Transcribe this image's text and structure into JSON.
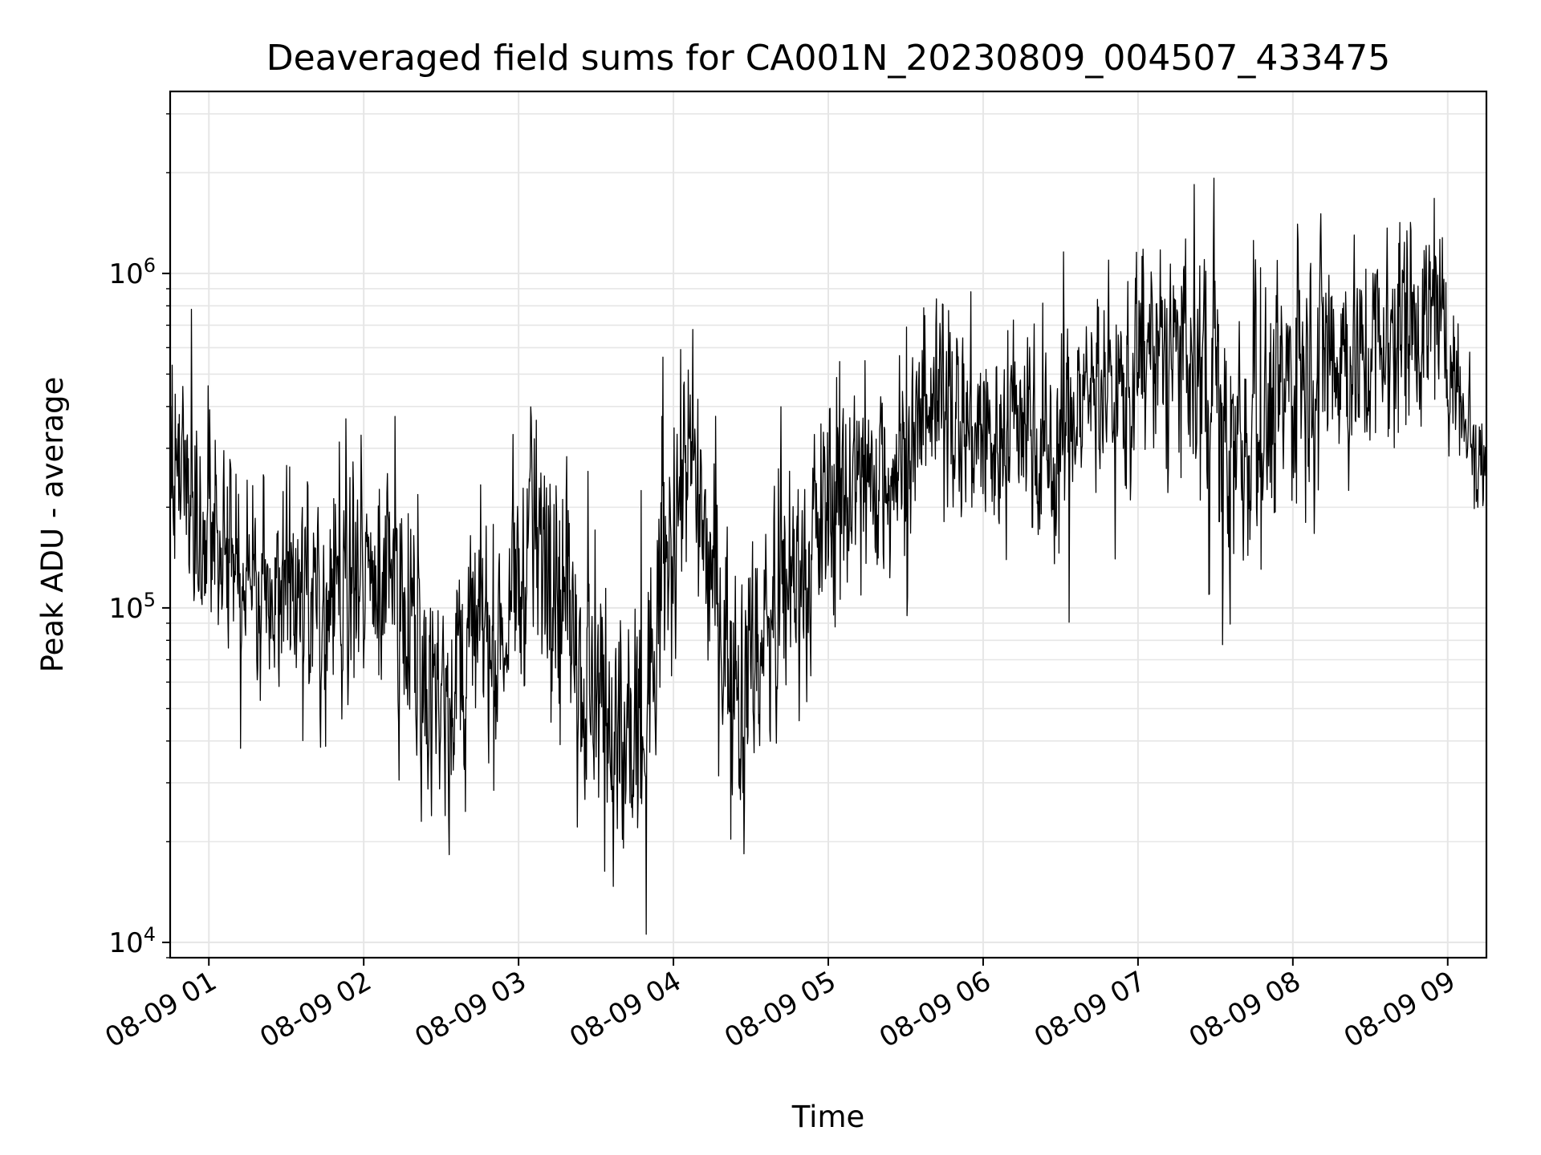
{
  "chart_data": {
    "type": "line",
    "title": "Deaveraged field sums for CA001N_20230809_004507_433475",
    "xlabel": "Time",
    "ylabel": "Peak ADU - average",
    "yscale": "log",
    "ylim": [
      9000,
      3500000
    ],
    "xlim": [
      "2023-08-09 00:45",
      "2023-08-09 09:15"
    ],
    "grid": true,
    "line_color": "#000000",
    "grid_color": "#e6e6e6",
    "x_ticks": [
      "2023-08-09 01:00",
      "2023-08-09 02:00",
      "2023-08-09 03:00",
      "2023-08-09 04:00",
      "2023-08-09 05:00",
      "2023-08-09 06:00",
      "2023-08-09 07:00",
      "2023-08-09 08:00",
      "2023-08-09 09:00"
    ],
    "x_tick_labels": [
      "08-09 01",
      "08-09 02",
      "08-09 03",
      "08-09 04",
      "08-09 05",
      "08-09 06",
      "08-09 07",
      "08-09 08",
      "08-09 09"
    ],
    "y_ticks": [
      {
        "value": 10000,
        "base": "10",
        "exp": "4"
      },
      {
        "value": 100000,
        "base": "10",
        "exp": "5"
      },
      {
        "value": 1000000,
        "base": "10",
        "exp": "6"
      }
    ],
    "series": [
      {
        "x": [
          "2023-08-09 00:45",
          "2023-08-09 00:55",
          "2023-08-09 01:05",
          "2023-08-09 01:15",
          "2023-08-09 01:25",
          "2023-08-09 01:35",
          "2023-08-09 01:45",
          "2023-08-09 01:55",
          "2023-08-09 02:05",
          "2023-08-09 02:15",
          "2023-08-09 02:25",
          "2023-08-09 02:35",
          "2023-08-09 02:45",
          "2023-08-09 02:55",
          "2023-08-09 03:05",
          "2023-08-09 03:15",
          "2023-08-09 03:25",
          "2023-08-09 03:35",
          "2023-08-09 03:45",
          "2023-08-09 03:55",
          "2023-08-09 04:05",
          "2023-08-09 04:15",
          "2023-08-09 04:25",
          "2023-08-09 04:35",
          "2023-08-09 04:45",
          "2023-08-09 04:55",
          "2023-08-09 05:05",
          "2023-08-09 05:15",
          "2023-08-09 05:25",
          "2023-08-09 05:35",
          "2023-08-09 05:45",
          "2023-08-09 05:55",
          "2023-08-09 06:05",
          "2023-08-09 06:15",
          "2023-08-09 06:25",
          "2023-08-09 06:35",
          "2023-08-09 06:45",
          "2023-08-09 06:55",
          "2023-08-09 07:05",
          "2023-08-09 07:15",
          "2023-08-09 07:25",
          "2023-08-09 07:35",
          "2023-08-09 07:45",
          "2023-08-09 07:55",
          "2023-08-09 08:05",
          "2023-08-09 08:15",
          "2023-08-09 08:25",
          "2023-08-09 08:35",
          "2023-08-09 08:45",
          "2023-08-09 08:55",
          "2023-08-09 09:05",
          "2023-08-09 09:15"
        ],
        "values": [
          250000,
          170000,
          140000,
          130000,
          120000,
          120000,
          110000,
          110000,
          130000,
          120000,
          60000,
          60000,
          90000,
          80000,
          160000,
          150000,
          60000,
          45000,
          30000,
          90000,
          300000,
          120000,
          60000,
          80000,
          120000,
          170000,
          220000,
          230000,
          280000,
          310000,
          420000,
          350000,
          300000,
          400000,
          280000,
          380000,
          500000,
          420000,
          600000,
          550000,
          500000,
          280000,
          350000,
          400000,
          600000,
          650000,
          550000,
          650000,
          800000,
          700000,
          450000,
          260000
        ],
        "noise_decades": [
          0.45,
          0.45,
          0.5,
          0.5,
          0.5,
          0.5,
          0.5,
          0.5,
          0.5,
          0.5,
          0.55,
          0.55,
          0.5,
          0.5,
          0.55,
          0.55,
          0.6,
          0.65,
          0.7,
          0.55,
          0.55,
          0.55,
          0.6,
          0.6,
          0.55,
          0.55,
          0.5,
          0.5,
          0.5,
          0.5,
          0.5,
          0.5,
          0.5,
          0.5,
          0.5,
          0.5,
          0.5,
          0.5,
          0.5,
          0.55,
          0.6,
          0.65,
          0.6,
          0.6,
          0.6,
          0.6,
          0.55,
          0.5,
          0.5,
          0.5,
          0.35,
          0.25
        ]
      }
    ]
  }
}
